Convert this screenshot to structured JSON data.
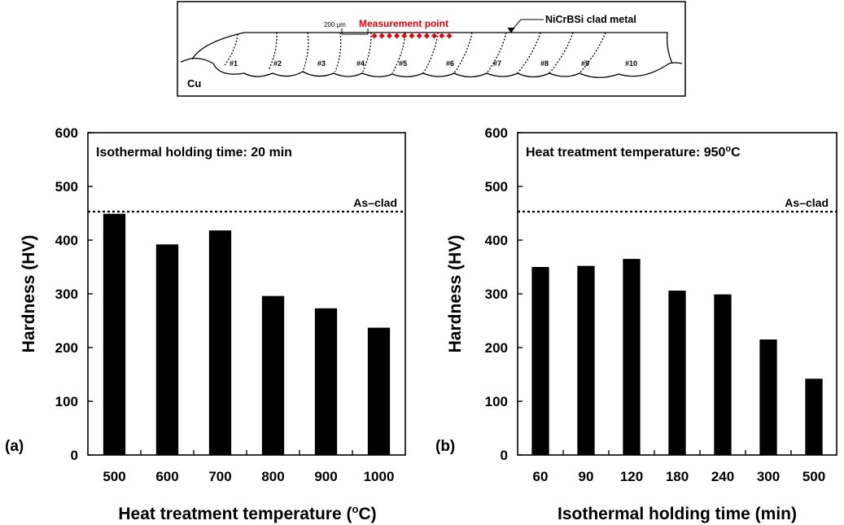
{
  "schematic": {
    "clad_label": "NiCrBSi clad metal",
    "base_label": "Cu",
    "scale_label": "200 μm",
    "point_label": "Measurement point",
    "point_color": "#e8000b",
    "bead_labels": [
      "#1",
      "#2",
      "#3",
      "#4",
      "#5",
      "#6",
      "#7",
      "#8",
      "#9",
      "#10"
    ]
  },
  "chart_data": [
    {
      "type": "bar",
      "panel_label": "(a)",
      "annotation": "Isothermal holding time: 20 min",
      "reference_line": {
        "label": "As–clad",
        "value": 453
      },
      "categories": [
        "500",
        "600",
        "700",
        "800",
        "900",
        "1000"
      ],
      "values": [
        449,
        392,
        418,
        296,
        273,
        237
      ],
      "xlabel_pre": "Heat treatment temperature (",
      "xlabel_sup": "o",
      "xlabel_post": "C)",
      "ylabel": "Hardness (HV)",
      "ylim": [
        0,
        600
      ],
      "yticks": [
        0,
        100,
        200,
        300,
        400,
        500,
        600
      ],
      "bar_color": "#000000"
    },
    {
      "type": "bar",
      "panel_label": "(b)",
      "annotation": "Heat treatment temperature: 950",
      "annotation_sup": "o",
      "annotation_post": "C",
      "reference_line": {
        "label": "As–clad",
        "value": 453
      },
      "categories": [
        "60",
        "90",
        "120",
        "180",
        "240",
        "300",
        "500"
      ],
      "values": [
        350,
        352,
        365,
        306,
        299,
        215,
        142
      ],
      "xlabel": "Isothermal holding time (min)",
      "ylabel": "Hardness (HV)",
      "ylim": [
        0,
        600
      ],
      "yticks": [
        0,
        100,
        200,
        300,
        400,
        500,
        600
      ],
      "bar_color": "#000000"
    }
  ]
}
